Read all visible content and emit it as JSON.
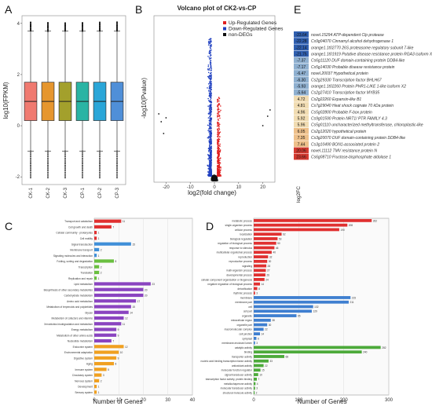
{
  "panels": {
    "A": "A",
    "B": "B",
    "C": "C",
    "D": "D",
    "E": "E"
  },
  "chart_data": [
    {
      "type": "box",
      "ylabel": "log10(FPKM)",
      "ylim": [
        -2.3,
        4.3
      ],
      "yticks": [
        -2,
        0,
        2,
        4
      ],
      "categories": [
        "CK-1",
        "CK-2",
        "CK-3",
        "CP-1",
        "CP-2",
        "CP-3"
      ],
      "colors": [
        "#f07a70",
        "#e6962e",
        "#a3a02c",
        "#2ab4a4",
        "#2aa6d8",
        "#4f8fd8"
      ],
      "boxes": [
        {
          "min": -1.0,
          "q1": 0.2,
          "median": 0.95,
          "q3": 1.7,
          "max": 3.7
        },
        {
          "min": -1.0,
          "q1": 0.2,
          "median": 0.95,
          "q3": 1.7,
          "max": 3.7
        },
        {
          "min": -1.0,
          "q1": 0.2,
          "median": 0.95,
          "q3": 1.7,
          "max": 3.7
        },
        {
          "min": -1.0,
          "q1": 0.2,
          "median": 0.95,
          "q3": 1.7,
          "max": 3.7
        },
        {
          "min": -1.0,
          "q1": 0.2,
          "median": 0.95,
          "q3": 1.7,
          "max": 3.7
        },
        {
          "min": -1.0,
          "q1": 0.2,
          "median": 0.95,
          "q3": 1.7,
          "max": 3.7
        }
      ]
    },
    {
      "type": "scatter",
      "title": "Volcano plot of CK2-vs-CP",
      "xlabel": "log2(fold change)",
      "ylabel": "-log10(Pvalue)",
      "xlim": [
        -25,
        25
      ],
      "xticks": [
        -20,
        -10,
        0,
        10,
        20
      ],
      "legend": [
        {
          "name": "Up-Regulated Genes",
          "color": "#e02020"
        },
        {
          "name": "Down-Regulated Genes",
          "color": "#2040c0"
        },
        {
          "name": "non-DEGs",
          "color": "#111111"
        }
      ]
    },
    {
      "type": "bar",
      "orientation": "horizontal",
      "xlabel": "Number of Genes",
      "xlim": [
        0,
        40
      ],
      "xticks": [
        0,
        10,
        20,
        30,
        40
      ],
      "categories": [
        "Transport and catabolism",
        "Cell growth and death",
        "Cellular community - prokaryotes",
        "Cell motility",
        "Signal transduction",
        "Membrane transport",
        "Signaling molecules and interaction",
        "Folding, sorting and degradation",
        "Transcription",
        "Translation",
        "Replication and repair",
        "Lipid metabolism",
        "Biosynthesis of other secondary metabolites",
        "Carbohydrate metabolism",
        "Amino acid metabolism",
        "Metabolism of terpenoids and polyketides",
        "Glycan",
        "Metabolism of cofactors and vitamins",
        "Xenobiotics biodegradation and metabolism",
        "Energy metabolism",
        "Metabolism of other amino acids",
        "Nucleotide metabolism",
        "Endocrine system",
        "Environmental adaptation",
        "Digestive system",
        "Aging",
        "Immune system",
        "Circulatory system",
        "Nervous system",
        "Development",
        "Sensory system"
      ],
      "values": [
        11,
        7,
        1,
        1,
        15,
        2,
        1,
        8,
        2,
        2,
        1,
        23,
        20,
        20,
        17,
        15,
        14,
        12,
        11,
        9,
        9,
        7,
        12,
        10,
        9,
        8,
        5,
        3,
        2,
        1,
        1
      ],
      "colors": [
        "#e03030",
        "#e03030",
        "#e03030",
        "#e03030",
        "#3f8fd8",
        "#3f8fd8",
        "#3f8fd8",
        "#6abf40",
        "#6abf40",
        "#6abf40",
        "#6abf40",
        "#8a44c0",
        "#8a44c0",
        "#8a44c0",
        "#8a44c0",
        "#8a44c0",
        "#8a44c0",
        "#8a44c0",
        "#8a44c0",
        "#8a44c0",
        "#8a44c0",
        "#8a44c0",
        "#f0a020",
        "#f0a020",
        "#f0a020",
        "#f0a020",
        "#f0a020",
        "#f0a020",
        "#f0a020",
        "#f0a020",
        "#f0a020"
      ]
    },
    {
      "type": "bar",
      "orientation": "horizontal",
      "xlabel": "Number of Genes",
      "xlim": [
        0,
        300
      ],
      "xticks": [
        0,
        100,
        200,
        300
      ],
      "categories": [
        "metabolic process",
        "single-organism process",
        "cellular process",
        "localization",
        "biological regulation",
        "regulation of biological process",
        "response to stimulus",
        "multicellular organismal process",
        "reproduction",
        "reproductive process",
        "signaling",
        "multi-organism process",
        "developmental process",
        "cellular component organization or biogenesis",
        "negative regulation of biological process",
        "detoxification",
        "rhythmic process",
        "membrane",
        "membrane part",
        "cell",
        "cell part",
        "organelle",
        "extracellular region",
        "organelle part",
        "macromolecular complex",
        "cell junction",
        "symplast",
        "membrane-enclosed lumen",
        "catalytic activity",
        "binding",
        "transporter activity",
        "nucleic acid binding transcription factor activity",
        "antioxidant activity",
        "molecular function regulator",
        "signal transducer activity",
        "transcription factor activity, protein binding",
        "metallochaperone activity",
        "molecular transducer activity",
        "structural molecule activity"
      ],
      "values": [
        262,
        208,
        190,
        62,
        53,
        50,
        46,
        40,
        32,
        30,
        28,
        27,
        26,
        24,
        14,
        8,
        3,
        215,
        211,
        132,
        129,
        95,
        38,
        30,
        22,
        14,
        6,
        3,
        282,
        240,
        68,
        33,
        22,
        15,
        10,
        7,
        4,
        3,
        2
      ],
      "colors": [
        "#e03030",
        "#e03030",
        "#e03030",
        "#e03030",
        "#e03030",
        "#e03030",
        "#e03030",
        "#e03030",
        "#e03030",
        "#e03030",
        "#e03030",
        "#e03030",
        "#e03030",
        "#e03030",
        "#e03030",
        "#e03030",
        "#e03030",
        "#3f7fd0",
        "#3f7fd0",
        "#3f7fd0",
        "#3f7fd0",
        "#3f7fd0",
        "#3f7fd0",
        "#3f7fd0",
        "#3f7fd0",
        "#3f7fd0",
        "#3f7fd0",
        "#3f7fd0",
        "#4caa3a",
        "#4caa3a",
        "#4caa3a",
        "#4caa3a",
        "#4caa3a",
        "#4caa3a",
        "#4caa3a",
        "#4caa3a",
        "#4caa3a",
        "#4caa3a",
        "#4caa3a"
      ]
    },
    {
      "type": "heatmap",
      "legend_label": "log2FC",
      "rows": [
        {
          "value": -23.64,
          "label": "novel.15294 ATP-dependent Clp protease"
        },
        {
          "value": -22.28,
          "label": "Cs9g04070 Cinnamyl alcohol dehydrogenase 1"
        },
        {
          "value": -22.14,
          "label": "orange1.1t02770 26S proteasome regulatory subunit 7-like"
        },
        {
          "value": -21.75,
          "label": "orange1.1t01919 Putative disease resistance protein RGA3 isoform X1"
        },
        {
          "value": -7.37,
          "label": "Cs6g11120 DUF domain-containing protein DDB4-like"
        },
        {
          "value": -7.17,
          "label": "Cs5g14030 Probable disease resistance protein"
        },
        {
          "value": -6.47,
          "label": "novel.20037 Hypothetical protein"
        },
        {
          "value": -6.3,
          "label": "Cs2g29330 Transcription factor BHLH67"
        },
        {
          "value": -5.93,
          "label": "orange1.1t02260 Protein PHR1-LIKE 1-like isoform X2"
        },
        {
          "value": -5.64,
          "label": "Cs2g27410 Transcription factor MYB35"
        },
        {
          "value": 4.72,
          "label": "Cs2g22260 Expansin-like B1"
        },
        {
          "value": 4.81,
          "label": "Cs7g29040 Heat shock cognate 70 kDa protein"
        },
        {
          "value": 4.96,
          "label": "Cs5g02800 Probable F-box protein"
        },
        {
          "value": 5.92,
          "label": "Cs9g01590 Protein NRT1/ PTR FAMILY 4.3"
        },
        {
          "value": 5.96,
          "label": "Cs5g01110 uncharacterized methyltransferase, chloroplastic-like"
        },
        {
          "value": 6.05,
          "label": "Cs2g12020 hypothetical protein"
        },
        {
          "value": 7.35,
          "label": "Cs3g20070 DUF domain-containing protein DDB4-like"
        },
        {
          "value": 7.44,
          "label": "Cs3g10490 BON1-associated protein 2"
        },
        {
          "value": 20.06,
          "label": "novel.11112 TMV resistance protein N"
        },
        {
          "value": 23.66,
          "label": "Cs6g08710 Fructose-bisphosphate aldolase 1"
        }
      ]
    }
  ]
}
